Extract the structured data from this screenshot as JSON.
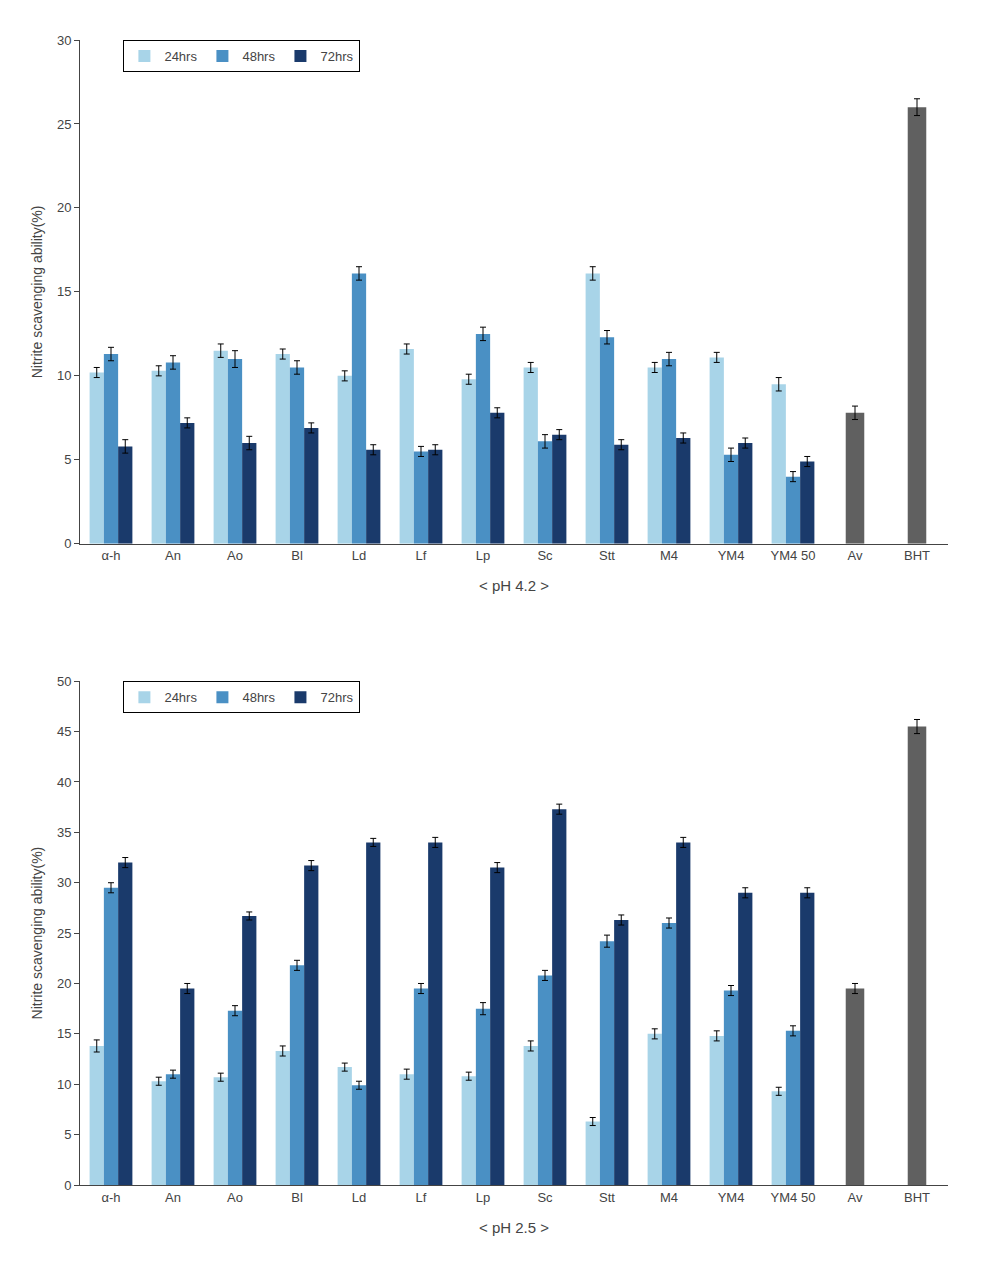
{
  "chart_data": [
    {
      "type": "bar",
      "categories": [
        "α-h",
        "An",
        "Ao",
        "Bl",
        "Ld",
        "Lf",
        "Lp",
        "Sc",
        "Stt",
        "M4",
        "YM4",
        "YM4 50",
        "Av",
        "BHT"
      ],
      "series": [
        {
          "name": "24hrs",
          "color": "#a8d4e8",
          "values": [
            10.2,
            10.3,
            11.5,
            11.3,
            10.0,
            11.6,
            9.8,
            10.5,
            16.1,
            10.5,
            11.1,
            9.5,
            null,
            null
          ],
          "errors": [
            0.3,
            0.3,
            0.4,
            0.3,
            0.3,
            0.3,
            0.3,
            0.3,
            0.4,
            0.3,
            0.3,
            0.4,
            null,
            null
          ]
        },
        {
          "name": "48hrs",
          "color": "#4a90c4",
          "values": [
            11.3,
            10.8,
            11.0,
            10.5,
            16.1,
            5.5,
            12.5,
            6.1,
            12.3,
            11.0,
            5.3,
            4.0,
            null,
            null
          ],
          "errors": [
            0.4,
            0.4,
            0.5,
            0.4,
            0.4,
            0.3,
            0.4,
            0.4,
            0.4,
            0.4,
            0.4,
            0.3,
            null,
            null
          ]
        },
        {
          "name": "72hrs",
          "color": "#1a3a6b",
          "values": [
            5.8,
            7.2,
            6.0,
            6.9,
            5.6,
            5.6,
            7.8,
            6.5,
            5.9,
            6.3,
            6.0,
            4.9,
            null,
            null
          ],
          "errors": [
            0.4,
            0.3,
            0.4,
            0.3,
            0.3,
            0.3,
            0.3,
            0.3,
            0.3,
            0.3,
            0.3,
            0.3,
            null,
            null
          ]
        },
        {
          "color": "#606060",
          "values": [
            null,
            null,
            null,
            null,
            null,
            null,
            null,
            null,
            null,
            null,
            null,
            null,
            7.8,
            26.0
          ],
          "errors": [
            null,
            null,
            null,
            null,
            null,
            null,
            null,
            null,
            null,
            null,
            null,
            null,
            0.4,
            0.5
          ]
        }
      ],
      "xlabel": "< pH 4.2 >",
      "ylabel": "Nitrite scavenging ability(%)",
      "ylim": [
        0,
        30
      ],
      "yticks": [
        0,
        5,
        10,
        15,
        20,
        25,
        30
      ],
      "legend": "upper left",
      "grid": false
    },
    {
      "type": "bar",
      "categories": [
        "α-h",
        "An",
        "Ao",
        "Bl",
        "Ld",
        "Lf",
        "Lp",
        "Sc",
        "Stt",
        "M4",
        "YM4",
        "YM4 50",
        "Av",
        "BHT"
      ],
      "series": [
        {
          "name": "24hrs",
          "color": "#a8d4e8",
          "values": [
            13.8,
            10.3,
            10.7,
            13.3,
            11.7,
            11.0,
            10.8,
            13.8,
            6.3,
            15.0,
            14.8,
            9.3,
            null,
            null
          ],
          "errors": [
            0.6,
            0.4,
            0.4,
            0.5,
            0.4,
            0.5,
            0.4,
            0.5,
            0.4,
            0.5,
            0.5,
            0.4,
            null,
            null
          ]
        },
        {
          "name": "48hrs",
          "color": "#4a90c4",
          "values": [
            29.5,
            11.0,
            17.3,
            21.8,
            9.9,
            19.5,
            17.5,
            20.8,
            24.2,
            26.0,
            19.3,
            15.3,
            null,
            null
          ],
          "errors": [
            0.5,
            0.4,
            0.5,
            0.5,
            0.4,
            0.5,
            0.6,
            0.5,
            0.6,
            0.5,
            0.5,
            0.5,
            null,
            null
          ]
        },
        {
          "name": "72hrs",
          "color": "#1a3a6b",
          "values": [
            32.0,
            19.5,
            26.7,
            31.7,
            34.0,
            34.0,
            31.5,
            37.3,
            26.3,
            34.0,
            29.0,
            29.0,
            null,
            null
          ],
          "errors": [
            0.5,
            0.5,
            0.4,
            0.5,
            0.4,
            0.5,
            0.5,
            0.5,
            0.5,
            0.5,
            0.5,
            0.5,
            null,
            null
          ]
        },
        {
          "color": "#606060",
          "values": [
            null,
            null,
            null,
            null,
            null,
            null,
            null,
            null,
            null,
            null,
            null,
            null,
            19.5,
            45.5
          ],
          "errors": [
            null,
            null,
            null,
            null,
            null,
            null,
            null,
            null,
            null,
            null,
            null,
            null,
            0.5,
            0.7
          ]
        }
      ],
      "xlabel": "< pH 2.5 >",
      "ylabel": "Nitrite scavenging ability(%)",
      "ylim": [
        0,
        50
      ],
      "yticks": [
        0,
        5,
        10,
        15,
        20,
        25,
        30,
        35,
        40,
        45,
        50
      ],
      "legend": "upper left",
      "grid": false
    }
  ]
}
